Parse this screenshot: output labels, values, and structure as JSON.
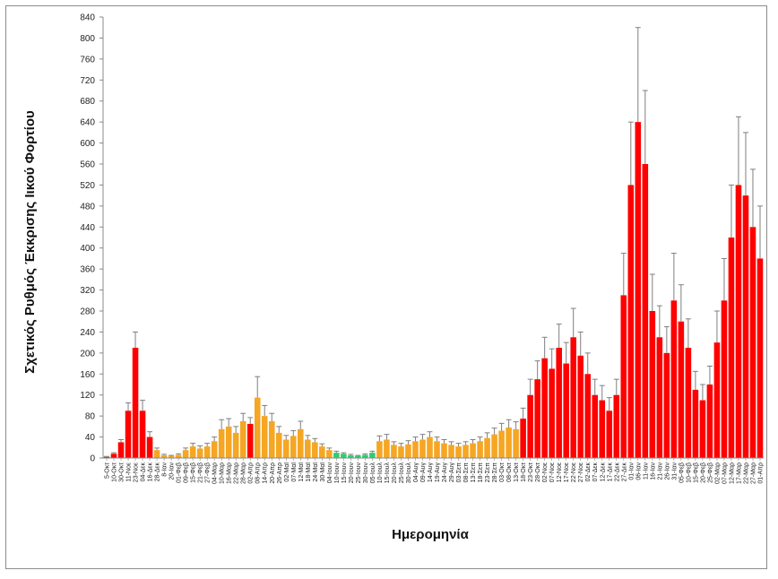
{
  "chart_data": {
    "type": "bar",
    "title": "",
    "xlabel": "Ημερομηνία",
    "ylabel": "Σχετικός Ρυθμός Έκκρισης Ιικού Φορτίου",
    "ylim": [
      0,
      840
    ],
    "yticks": [
      0,
      40,
      80,
      120,
      160,
      200,
      240,
      280,
      320,
      360,
      400,
      440,
      480,
      520,
      560,
      600,
      640,
      680,
      720,
      760,
      800,
      840
    ],
    "grid": false,
    "legend": "none",
    "colors": {
      "red": "#ff0000",
      "orange": "#f5a623",
      "green": "#2ecc71",
      "error": "#7f7f7f"
    },
    "x_tick_labels": [
      "5-Οκτ",
      "10-Οκτ",
      "30-Οκτ",
      "11-Νοε",
      "23-Νοε",
      "04-Δεκ",
      "16-Δεκ",
      "28-Δεκ",
      "8-Ιαν",
      "20-Ιαν",
      "01-Φεβ",
      "09-Φεβ",
      "15-Φεβ",
      "21-Φεβ",
      "27-Φεβ",
      "04-Μαρ",
      "10-Μαρ",
      "16-Μαρ",
      "22-Μαρ",
      "28-Μαρ",
      "02-Απρ",
      "08-Απρ",
      "14-Απρ",
      "20-Απρ",
      "26-Απρ",
      "02-Μαϊ",
      "07-Μαϊ",
      "12-Μαϊ",
      "18-Μαϊ",
      "24-Μαϊ",
      "30-Μαϊ",
      "04-Ιουν",
      "10-Ιουν",
      "15-Ιουν",
      "20-Ιουν",
      "25-Ιουν",
      "30-Ιουν",
      "05-Ιουλ",
      "10-Ιουλ",
      "15-Ιουλ",
      "20-Ιουλ",
      "25-Ιουλ",
      "30-Ιουλ",
      "04-Αυγ",
      "09-Αυγ",
      "14-Αυγ",
      "19-Αυγ",
      "24-Αυγ",
      "29-Αυγ",
      "03-Σεπ",
      "08-Σεπ",
      "13-Σεπ",
      "18-Σεπ",
      "23-Σεπ",
      "28-Σεπ",
      "03-Οκτ",
      "08-Οκτ",
      "13-Οκτ",
      "18-Οκτ",
      "23-Οκτ",
      "28-Οκτ",
      "02-Νοε",
      "07-Νοε",
      "12-Νοε",
      "17-Νοε",
      "22-Νοε",
      "27-Νοε",
      "02-Δεκ",
      "07-Δεκ",
      "12-Δεκ",
      "17-Δεκ",
      "22-Δεκ",
      "27-Δεκ",
      "01-Ιαν",
      "06-Ιαν",
      "11-Ιαν",
      "16-Ιαν",
      "21-Ιαν",
      "26-Ιαν",
      "31-Ιαν",
      "05-Φεβ",
      "10-Φεβ",
      "15-Φεβ",
      "20-Φεβ",
      "25-Φεβ",
      "02-Μαρ",
      "07-Μαρ",
      "12-Μαρ",
      "17-Μαρ",
      "22-Μαρ",
      "27-Μαρ",
      "01-Απρ"
    ],
    "values": [
      2,
      8,
      30,
      90,
      210,
      90,
      40,
      15,
      5,
      4,
      6,
      15,
      22,
      18,
      22,
      32,
      55,
      60,
      48,
      70,
      65,
      115,
      80,
      70,
      48,
      35,
      42,
      55,
      35,
      30,
      22,
      15,
      10,
      8,
      5,
      4,
      6,
      10,
      32,
      35,
      25,
      22,
      26,
      32,
      35,
      40,
      32,
      28,
      25,
      22,
      25,
      28,
      32,
      38,
      45,
      52,
      58,
      55,
      75,
      120,
      150,
      190,
      170,
      210,
      180,
      230,
      195,
      160,
      120,
      110,
      90,
      120,
      310,
      520,
      640,
      560,
      280,
      230,
      200,
      300,
      260,
      210,
      130,
      110,
      140,
      220,
      300,
      420,
      520,
      500,
      440,
      380
    ],
    "errors": [
      1,
      2,
      5,
      15,
      30,
      20,
      10,
      4,
      2,
      1,
      2,
      4,
      6,
      5,
      6,
      8,
      18,
      15,
      12,
      15,
      12,
      40,
      20,
      15,
      12,
      8,
      10,
      15,
      8,
      7,
      5,
      4,
      3,
      2,
      2,
      1,
      2,
      3,
      10,
      10,
      6,
      6,
      7,
      8,
      10,
      10,
      8,
      7,
      6,
      6,
      6,
      7,
      8,
      10,
      12,
      14,
      15,
      14,
      20,
      30,
      35,
      40,
      38,
      45,
      40,
      55,
      45,
      40,
      30,
      28,
      25,
      30,
      80,
      120,
      180,
      140,
      70,
      60,
      50,
      90,
      70,
      55,
      35,
      30,
      35,
      60,
      80,
      100,
      130,
      120,
      110,
      100
    ],
    "colors_per_bar": [
      "red",
      "red",
      "red",
      "red",
      "red",
      "red",
      "red",
      "orange",
      "orange",
      "orange",
      "orange",
      "orange",
      "orange",
      "orange",
      "orange",
      "orange",
      "orange",
      "orange",
      "orange",
      "orange",
      "red",
      "orange",
      "orange",
      "orange",
      "orange",
      "orange",
      "orange",
      "orange",
      "orange",
      "orange",
      "orange",
      "orange",
      "green",
      "green",
      "green",
      "green",
      "green",
      "green",
      "orange",
      "orange",
      "orange",
      "orange",
      "orange",
      "orange",
      "orange",
      "orange",
      "orange",
      "orange",
      "orange",
      "orange",
      "orange",
      "orange",
      "orange",
      "orange",
      "orange",
      "orange",
      "orange",
      "orange",
      "red",
      "red",
      "red",
      "red",
      "red",
      "red",
      "red",
      "red",
      "red",
      "red",
      "red",
      "red",
      "red",
      "red",
      "red",
      "red",
      "red",
      "red",
      "red",
      "red",
      "red",
      "red",
      "red",
      "red",
      "red",
      "red",
      "red",
      "red",
      "red",
      "red",
      "red",
      "red"
    ]
  }
}
